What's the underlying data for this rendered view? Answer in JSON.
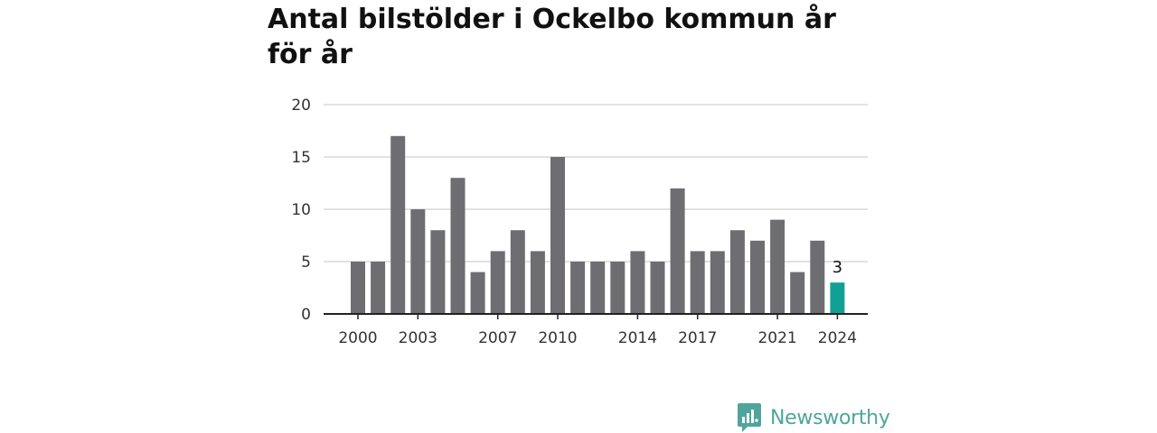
{
  "header": {
    "title": "Antal bilstölder i Ockelbo kommun år för år"
  },
  "brand": {
    "name": "Newsworthy",
    "icon": "newsworthy-logo-icon",
    "color": "#4fa59c"
  },
  "chart_data": {
    "type": "bar",
    "title": "Antal bilstölder i Ockelbo kommun år för år",
    "xlabel": "",
    "ylabel": "",
    "categories": [
      "2000",
      "2001",
      "2002",
      "2003",
      "2004",
      "2005",
      "2006",
      "2007",
      "2008",
      "2009",
      "2010",
      "2011",
      "2012",
      "2013",
      "2014",
      "2015",
      "2016",
      "2017",
      "2018",
      "2019",
      "2020",
      "2021",
      "2022",
      "2023",
      "2024"
    ],
    "values": [
      5,
      5,
      17,
      10,
      8,
      13,
      4,
      6,
      8,
      6,
      15,
      5,
      5,
      5,
      6,
      5,
      12,
      6,
      6,
      8,
      7,
      9,
      4,
      7,
      3
    ],
    "x_tick_labels": [
      "2000",
      "2003",
      "2007",
      "2010",
      "2014",
      "2017",
      "2021",
      "2024"
    ],
    "y_ticks": [
      "0",
      "5",
      "10",
      "15",
      "20"
    ],
    "ylim": [
      0,
      20
    ],
    "grid": "horizontal",
    "highlight": {
      "category": "2024",
      "value_label": "3"
    },
    "colors": {
      "bar": "#6e6d72",
      "highlight": "#12a094",
      "grid": "#d9d9d9",
      "axis": "#222222"
    }
  }
}
